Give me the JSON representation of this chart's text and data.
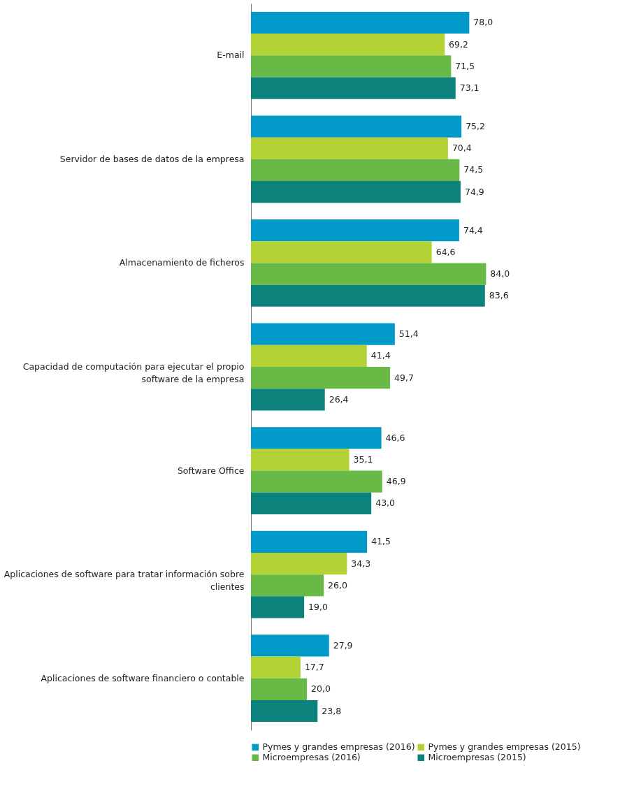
{
  "chart_data": {
    "type": "bar",
    "orientation": "horizontal",
    "legend": "bottom",
    "grid": false,
    "categories": [
      "E-mail",
      "Servidor de bases de datos de la empresa",
      "Almacenamiento de ficheros",
      "Capacidad de computación para ejecutar el propio software de la empresa",
      "Software Office",
      "Aplicaciones de software para tratar información sobre clientes",
      "Aplicaciones de software financiero o contable"
    ],
    "series": [
      {
        "name": "Pymes y grandes empresas (2016)",
        "color": "#0099c8",
        "values": [
          78.0,
          75.2,
          74.4,
          51.4,
          46.6,
          41.5,
          27.9
        ],
        "value_labels": [
          "78,0",
          "75,2",
          "74,4",
          "51,4",
          "46,6",
          "41,5",
          "27,9"
        ]
      },
      {
        "name": "Pymes y grandes empresas (2015)",
        "color": "#b3d236",
        "values": [
          69.2,
          70.4,
          64.6,
          41.4,
          35.1,
          34.3,
          17.7
        ],
        "value_labels": [
          "69,2",
          "70,4",
          "64,6",
          "41,4",
          "35,1",
          "34,3",
          "17,7"
        ]
      },
      {
        "name": "Microempresas (2016)",
        "color": "#69b946",
        "values": [
          71.5,
          74.5,
          84.0,
          49.7,
          46.9,
          26.0,
          20.0
        ],
        "value_labels": [
          "71,5",
          "74,5",
          "84,0",
          "49,7",
          "46,9",
          "26,0",
          "20,0"
        ]
      },
      {
        "name": "Microempresas (2015)",
        "color": "#0b827c",
        "values": [
          73.1,
          74.9,
          83.6,
          26.4,
          43.0,
          19.0,
          23.8
        ],
        "value_labels": [
          "73,1",
          "74,9",
          "83,6",
          "26,4",
          "43,0",
          "19,0",
          "23,8"
        ]
      }
    ]
  }
}
